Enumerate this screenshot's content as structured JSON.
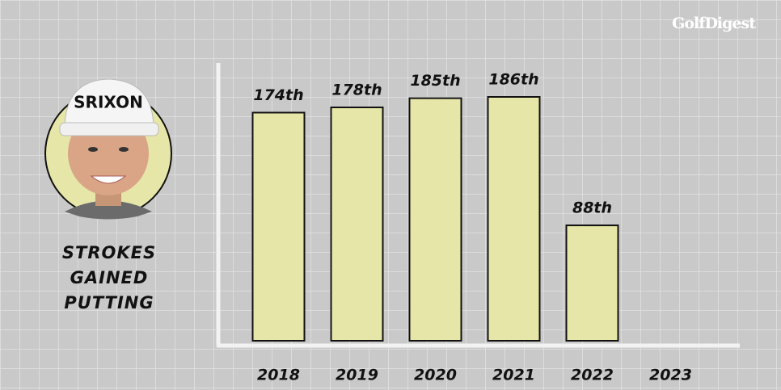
{
  "brand": "GolfDigest",
  "cap_text": "SRIXON",
  "chart_data": {
    "type": "bar",
    "title": "STROKES GAINED PUTTING",
    "categories": [
      "2018",
      "2019",
      "2020",
      "2021",
      "2022",
      "2023"
    ],
    "values": [
      174,
      178,
      185,
      186,
      88,
      null
    ],
    "value_labels": [
      "174th",
      "178th",
      "185th",
      "186th",
      "88th",
      null
    ],
    "color": "#e6e6a8"
  }
}
